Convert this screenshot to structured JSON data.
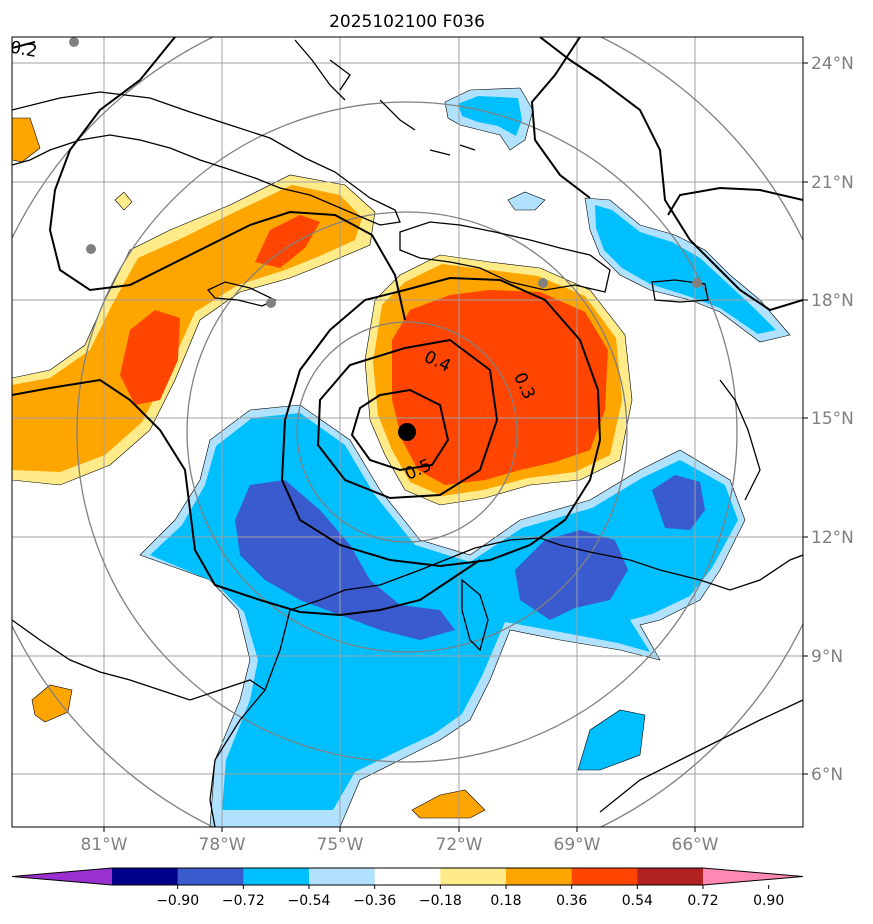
{
  "title": "2025102100 F036",
  "lat_labels": [
    "24°N",
    "21°N",
    "18°N",
    "15°N",
    "12°N",
    "9°N",
    "6°N"
  ],
  "lon_labels": [
    "81°W",
    "78°W",
    "75°W",
    "72°W",
    "69°W",
    "66°W"
  ],
  "contour_labels": [
    "0.2",
    "0.4",
    "0.3",
    "0.5"
  ],
  "colorbar": {
    "ticks": [
      "−0.90",
      "−0.72",
      "−0.54",
      "−0.36",
      "−0.18",
      "0.18",
      "0.36",
      "0.54",
      "0.72",
      "0.90"
    ],
    "colors": [
      "#9b30d0",
      "#00008b",
      "#3a5bcd",
      "#00bfff",
      "#b0e2ff",
      "#ffffff",
      "#ffeb8a",
      "#ffa500",
      "#ff4500",
      "#b22222",
      "#ff88b4"
    ]
  },
  "colors": {
    "strong_positive": "#ff4500",
    "positive": "#ffa500",
    "weak_positive": "#ffeb8a",
    "weak_negative": "#b0e2ff",
    "negative": "#00bfff",
    "strong_negative": "#3a5bcd",
    "grid": "#a0a0a0",
    "range_rings": "#808080",
    "center_marker": "#000000",
    "station_marker": "#808080"
  }
}
